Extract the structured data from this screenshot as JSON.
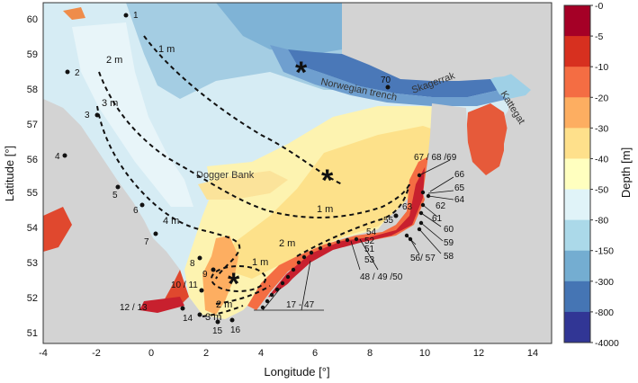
{
  "map": {
    "axes": {
      "x_label": "Longitude [°]",
      "y_label": "Latitude [°]",
      "x_ticks": [
        "-4",
        "-2",
        "0",
        "2",
        "4",
        "6",
        "8",
        "10",
        "12",
        "14"
      ],
      "y_ticks": [
        "60",
        "59",
        "58",
        "57",
        "56",
        "55",
        "54",
        "53",
        "52",
        "51"
      ],
      "x_range": [
        -4,
        15
      ],
      "y_range": [
        50.7,
        60.6
      ]
    },
    "colorbar": {
      "label": "Depth [m]",
      "ticks": [
        "-0",
        "-5",
        "-10",
        "-20",
        "-30",
        "-40",
        "-50",
        "-80",
        "-150",
        "-300",
        "-800",
        "-4000"
      ],
      "colors": [
        "#a50026",
        "#d7301f",
        "#f46d43",
        "#fdae61",
        "#fee08b",
        "#ffffbf",
        "#e0f3f8",
        "#abd9e9",
        "#74add1",
        "#4575b4",
        "#313695"
      ]
    },
    "place_labels": {
      "dogger": "Dogger Bank",
      "norwegian": "Norwegian trench",
      "skagerrak": "Skagerrak",
      "kattegat": "Kattegat"
    },
    "amplitude_labels": {
      "a1": "1 m",
      "a2": "2 m",
      "a3": "3 m",
      "a4": "1 m",
      "a5": "4 m",
      "a6": "2 m",
      "a7": "1 m",
      "a8": "2 m",
      "a9": "3 m"
    },
    "stations": {
      "s1": "1",
      "s2": "2",
      "s3": "3",
      "s4": "4",
      "s5": "5",
      "s6": "6",
      "s7": "7",
      "s8": "8",
      "s9": "9",
      "s1011": "10 / 11",
      "s1213": "12 / 13",
      "s14": "14",
      "s15": "15",
      "s16": "16",
      "s1747": "17 - 47",
      "s484950": "48 / 49 /50",
      "s51": "51",
      "s52": "52",
      "s53": "53",
      "s54": "54",
      "s55": "55",
      "s5657": "56/ 57",
      "s58": "58",
      "s59": "59",
      "s60": "60",
      "s61": "61",
      "s62": "62",
      "s63": "63",
      "s64": "64",
      "s65": "65",
      "s66": "66",
      "s676869": "67 / 68 /69",
      "s70": "70"
    }
  }
}
